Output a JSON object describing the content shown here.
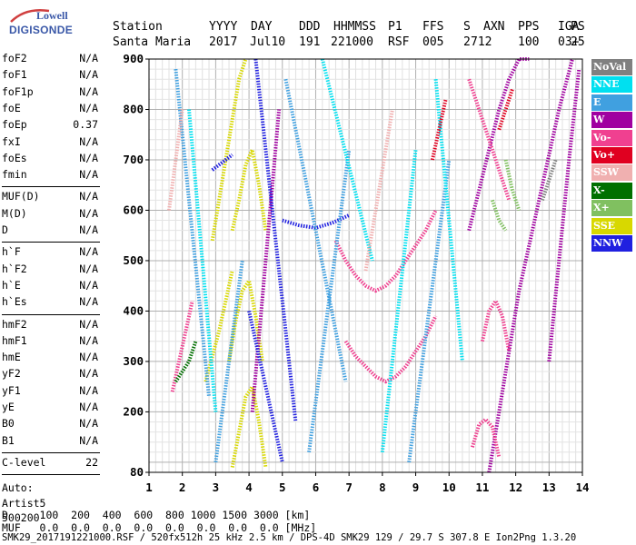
{
  "logo": {
    "line1": "Lowell",
    "line2": "DIGISONDE"
  },
  "header": {
    "labels": [
      "Station",
      "YYYY",
      "DAY",
      "DDD",
      "HHMMSS",
      "P1",
      "FFS",
      "S",
      "AXN",
      "PPS",
      "IGA",
      "PS"
    ],
    "values": [
      "Santa Maria",
      "2017",
      "Jul10",
      "191",
      "221000",
      "RSF",
      "005",
      "2",
      "712",
      "100",
      "03+",
      "25"
    ]
  },
  "params": {
    "group1": [
      {
        "name": "foF2",
        "value": "N/A"
      },
      {
        "name": "foF1",
        "value": "N/A"
      },
      {
        "name": "foF1p",
        "value": "N/A"
      },
      {
        "name": "foE",
        "value": "N/A"
      },
      {
        "name": "foEp",
        "value": "0.37"
      },
      {
        "name": "fxI",
        "value": "N/A"
      },
      {
        "name": "foEs",
        "value": "N/A"
      },
      {
        "name": "fmin",
        "value": "N/A"
      }
    ],
    "group2": [
      {
        "name": "MUF(D)",
        "value": "N/A"
      },
      {
        "name": "M(D)",
        "value": "N/A"
      },
      {
        "name": "D",
        "value": "N/A"
      }
    ],
    "group3": [
      {
        "name": "h`F",
        "value": "N/A"
      },
      {
        "name": "h`F2",
        "value": "N/A"
      },
      {
        "name": "h`E",
        "value": "N/A"
      },
      {
        "name": "h`Es",
        "value": "N/A"
      }
    ],
    "group4": [
      {
        "name": "hmF2",
        "value": "N/A"
      },
      {
        "name": "hmF1",
        "value": "N/A"
      },
      {
        "name": "hmE",
        "value": "N/A"
      },
      {
        "name": "yF2",
        "value": "N/A"
      },
      {
        "name": "yF1",
        "value": "N/A"
      },
      {
        "name": "yE",
        "value": "N/A"
      },
      {
        "name": "B0",
        "value": "N/A"
      },
      {
        "name": "B1",
        "value": "N/A"
      }
    ],
    "clevel": {
      "name": "C-level",
      "value": "22"
    },
    "auto": [
      "Auto:",
      "Artist5",
      "500200"
    ]
  },
  "legend": [
    {
      "label": "NoVal",
      "color": "#808080"
    },
    {
      "label": "NNE",
      "color": "#00e0f0"
    },
    {
      "label": "E",
      "color": "#40a0e0"
    },
    {
      "label": "W",
      "color": "#a000a0"
    },
    {
      "label": "Vo-",
      "color": "#f04090"
    },
    {
      "label": "Vo+",
      "color": "#e00020"
    },
    {
      "label": "SSW",
      "color": "#f0b0b0"
    },
    {
      "label": "X-",
      "color": "#007000"
    },
    {
      "label": "X+",
      "color": "#80c060"
    },
    {
      "label": "SSE",
      "color": "#d8d800"
    },
    {
      "label": "NNW",
      "color": "#2020e0"
    }
  ],
  "bottom": {
    "d_line": "D     100  200  400  600  800 1000 1500 3000 [km]",
    "muf_line": "MUF   0.0  0.0  0.0  0.0  0.0  0.0  0.0  0.0 [MHz]"
  },
  "footer": "SMK29_2017191221000.RSF / 520fx512h 25 kHz 2.5 km / DPS-4D SMK29 129 / 29.7 S 307.8 E Ion2Png 1.3.20",
  "chart_data": {
    "type": "scatter",
    "x_ticks": [
      "1",
      "2",
      "3",
      "4",
      "5",
      "6",
      "7",
      "8",
      "9",
      "10",
      "11",
      "12",
      "13",
      "14"
    ],
    "y_ticks": [
      "80",
      "200",
      "300",
      "400",
      "500",
      "600",
      "700",
      "800",
      "900"
    ],
    "xlim": [
      1,
      14
    ],
    "ylim": [
      80,
      900
    ],
    "grid": true,
    "legend_position": "right",
    "series": [
      {
        "name": "SSE",
        "color": "#d8d800",
        "traces": [
          {
            "x": [
              2.9,
              3.1,
              3.3,
              3.5,
              3.7,
              3.9
            ],
            "y": [
              540,
              620,
              700,
              780,
              860,
              900
            ]
          },
          {
            "x": [
              3.5,
              3.7,
              3.9,
              4.1,
              4.3,
              4.5
            ],
            "y": [
              560,
              620,
              690,
              720,
              650,
              560
            ]
          },
          {
            "x": [
              3.4,
              3.6,
              3.8,
              4.0,
              4.2,
              4.4
            ],
            "y": [
              300,
              380,
              440,
              460,
              390,
              300
            ]
          },
          {
            "x": [
              3.5,
              3.7,
              3.9,
              4.1,
              4.3,
              4.5
            ],
            "y": [
              90,
              160,
              230,
              250,
              180,
              90
            ]
          },
          {
            "x": [
              2.7,
              2.9,
              3.1,
              3.3,
              3.5
            ],
            "y": [
              260,
              310,
              360,
              420,
              480
            ]
          }
        ]
      },
      {
        "name": "W",
        "color": "#a000a0",
        "traces": [
          {
            "x": [
              11.2,
              11.5,
              11.8,
              12.1,
              12.5,
              12.9,
              13.3,
              13.7
            ],
            "y": [
              80,
              200,
              320,
              440,
              560,
              680,
              800,
              900
            ]
          },
          {
            "x": [
              10.6,
              10.9,
              11.2,
              11.5,
              11.8,
              12.1,
              12.4
            ],
            "y": [
              560,
              640,
              720,
              800,
              860,
              900,
              900
            ]
          },
          {
            "x": [
              13.0,
              13.3,
              13.6,
              13.9
            ],
            "y": [
              300,
              500,
              700,
              880
            ]
          },
          {
            "x": [
              4.1,
              4.3,
              4.5,
              4.7,
              4.9
            ],
            "y": [
              200,
              350,
              500,
              650,
              800
            ]
          }
        ]
      },
      {
        "name": "Vo-",
        "color": "#f04090",
        "traces": [
          {
            "x": [
              6.6,
              6.9,
              7.2,
              7.5,
              7.8,
              8.1,
              8.4,
              8.7,
              9.0,
              9.3,
              9.6
            ],
            "y": [
              540,
              500,
              470,
              450,
              440,
              450,
              470,
              500,
              530,
              560,
              600
            ]
          },
          {
            "x": [
              6.9,
              7.2,
              7.5,
              7.8,
              8.1,
              8.4,
              8.7,
              9.0,
              9.3,
              9.6
            ],
            "y": [
              340,
              310,
              290,
              270,
              260,
              270,
              290,
              320,
              350,
              390
            ]
          },
          {
            "x": [
              10.7,
              10.9,
              11.1,
              11.3,
              11.5
            ],
            "y": [
              130,
              175,
              185,
              170,
              110
            ]
          },
          {
            "x": [
              10.6,
              10.8,
              11.0,
              11.2,
              11.4,
              11.6,
              11.8
            ],
            "y": [
              860,
              820,
              780,
              740,
              700,
              660,
              620
            ]
          },
          {
            "x": [
              11.0,
              11.2,
              11.4,
              11.6,
              11.8
            ],
            "y": [
              340,
              400,
              420,
              390,
              320
            ]
          },
          {
            "x": [
              1.7,
              1.9,
              2.1,
              2.3
            ],
            "y": [
              240,
              300,
              360,
              420
            ]
          }
        ]
      },
      {
        "name": "NNW",
        "color": "#2020e0",
        "traces": [
          {
            "x": [
              4.2,
              4.4,
              4.6,
              4.8,
              5.0,
              5.2,
              5.4
            ],
            "y": [
              900,
              780,
              660,
              540,
              420,
              300,
              180
            ]
          },
          {
            "x": [
              4.0,
              4.2,
              4.4,
              4.6,
              4.8,
              5.0
            ],
            "y": [
              400,
              340,
              280,
              220,
              160,
              100
            ]
          },
          {
            "x": [
              5.0,
              5.5,
              6.0,
              6.5,
              7.0
            ],
            "y": [
              580,
              570,
              565,
              575,
              590
            ]
          },
          {
            "x": [
              2.9,
              3.1,
              3.3,
              3.5
            ],
            "y": [
              680,
              690,
              700,
              710
            ]
          }
        ]
      },
      {
        "name": "E",
        "color": "#40a0e0",
        "traces": [
          {
            "x": [
              5.1,
              5.4,
              5.7,
              6.0,
              6.3,
              6.6,
              6.9
            ],
            "y": [
              860,
              760,
              660,
              560,
              460,
              360,
              260
            ]
          },
          {
            "x": [
              5.8,
              6.0,
              6.2,
              6.4,
              6.6,
              6.8,
              7.0
            ],
            "y": [
              120,
              220,
              320,
              420,
              520,
              620,
              720
            ]
          },
          {
            "x": [
              8.8,
              9.0,
              9.2,
              9.4,
              9.6,
              9.8,
              10.0
            ],
            "y": [
              100,
              200,
              300,
              400,
              500,
              600,
              700
            ]
          },
          {
            "x": [
              1.8,
              2.0,
              2.2,
              2.4,
              2.6,
              2.8
            ],
            "y": [
              880,
              750,
              620,
              490,
              360,
              230
            ]
          },
          {
            "x": [
              3.0,
              3.2,
              3.4,
              3.6,
              3.8
            ],
            "y": [
              100,
              200,
              300,
              400,
              500
            ]
          }
        ]
      },
      {
        "name": "NNE",
        "color": "#00e0f0",
        "traces": [
          {
            "x": [
              8.0,
              8.2,
              8.4,
              8.6,
              8.8,
              9.0
            ],
            "y": [
              120,
              240,
              360,
              480,
              600,
              720
            ]
          },
          {
            "x": [
              6.2,
              6.5,
              6.8,
              7.1,
              7.4,
              7.7
            ],
            "y": [
              900,
              820,
              740,
              660,
              580,
              500
            ]
          },
          {
            "x": [
              9.6,
              9.8,
              10.0,
              10.2,
              10.4
            ],
            "y": [
              860,
              720,
              580,
              440,
              300
            ]
          },
          {
            "x": [
              2.2,
              2.4,
              2.6,
              2.8,
              3.0
            ],
            "y": [
              800,
              650,
              500,
              350,
              200
            ]
          }
        ]
      },
      {
        "name": "SSW",
        "color": "#f0b0b0",
        "traces": [
          {
            "x": [
              7.5,
              7.7,
              7.9,
              8.1,
              8.3
            ],
            "y": [
              480,
              560,
              640,
              720,
              800
            ]
          },
          {
            "x": [
              1.6,
              1.8,
              2.0
            ],
            "y": [
              600,
              700,
              800
            ]
          }
        ]
      },
      {
        "name": "X-",
        "color": "#007000",
        "traces": [
          {
            "x": [
              1.8,
              2.0,
              2.2,
              2.4
            ],
            "y": [
              260,
              280,
              300,
              340
            ]
          }
        ]
      },
      {
        "name": "X+",
        "color": "#80c060",
        "traces": [
          {
            "x": [
              11.7,
              11.9,
              12.1
            ],
            "y": [
              700,
              640,
              600
            ]
          },
          {
            "x": [
              11.3,
              11.5,
              11.7
            ],
            "y": [
              620,
              580,
              560
            ]
          }
        ]
      },
      {
        "name": "Vo+",
        "color": "#e00020",
        "traces": [
          {
            "x": [
              9.5,
              9.7,
              9.9
            ],
            "y": [
              700,
              760,
              820
            ]
          },
          {
            "x": [
              11.5,
              11.7,
              11.9
            ],
            "y": [
              760,
              800,
              840
            ]
          }
        ]
      },
      {
        "name": "NoVal",
        "color": "#808080",
        "traces": [
          {
            "x": [
              12.8,
              13.0,
              13.2
            ],
            "y": [
              620,
              660,
              700
            ]
          }
        ]
      }
    ]
  }
}
